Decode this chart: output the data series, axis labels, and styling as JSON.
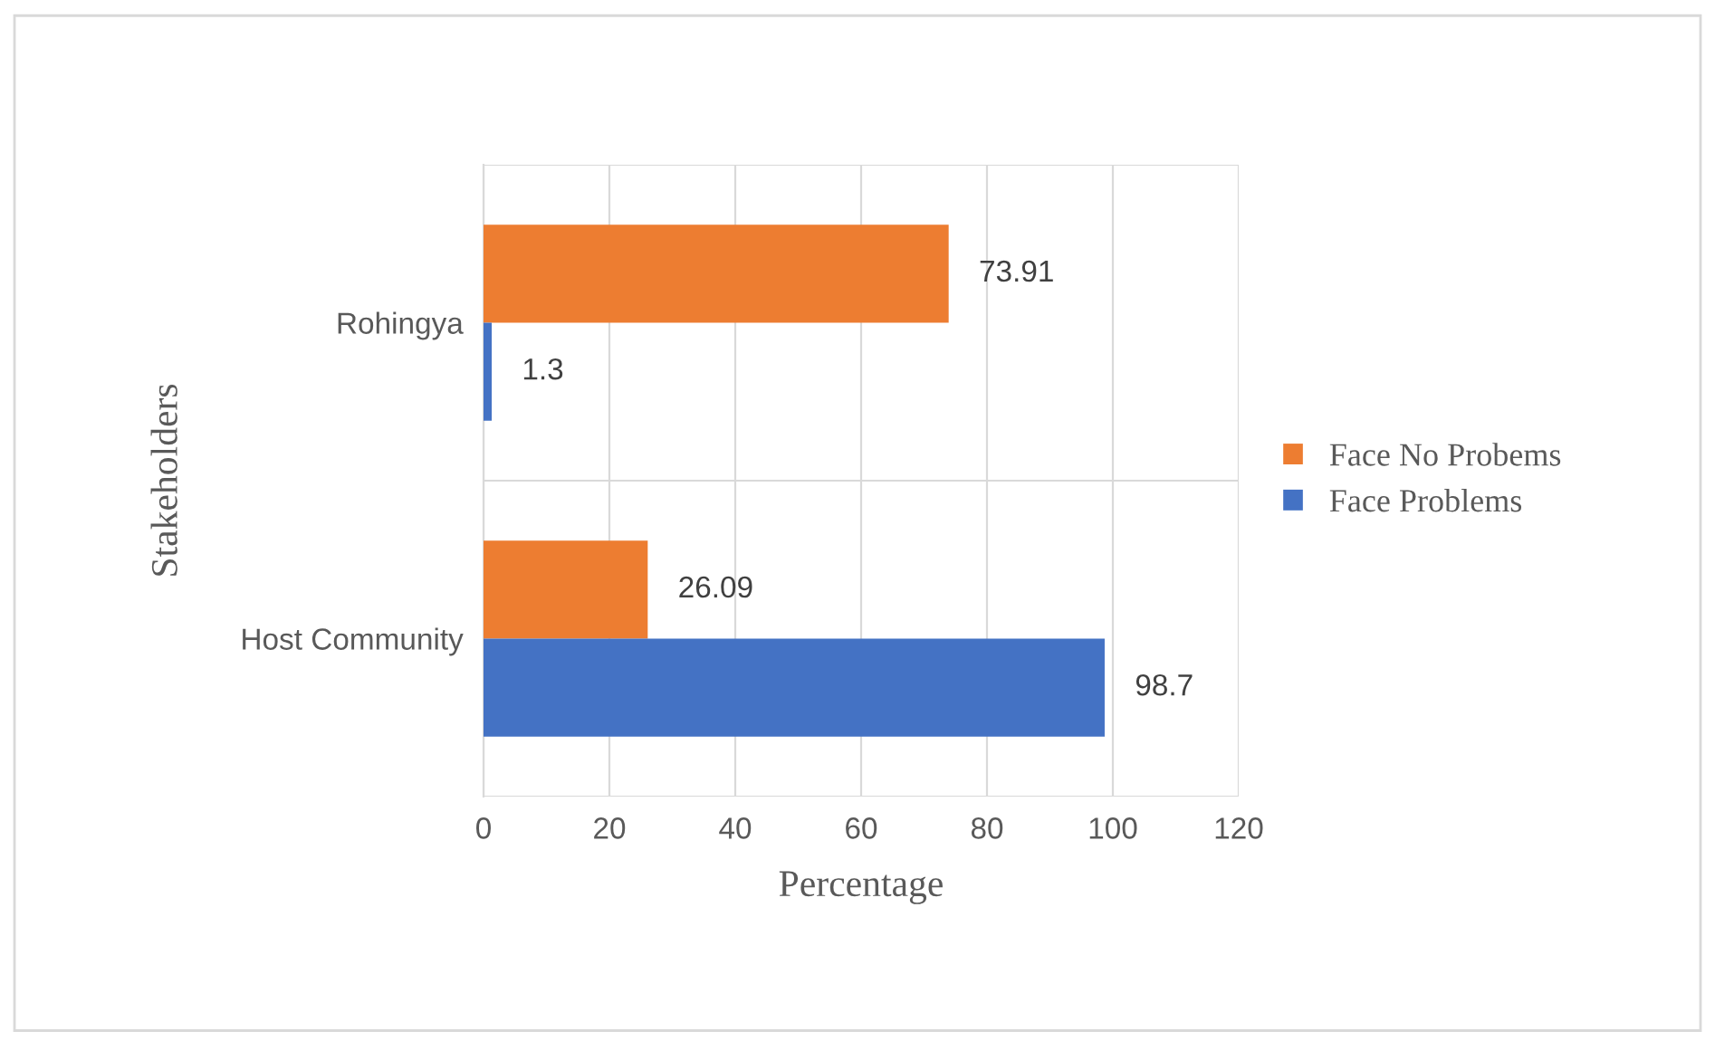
{
  "chart_data": {
    "type": "bar",
    "orientation": "horizontal",
    "xlabel": "Percentage",
    "ylabel": "Stakeholders",
    "categories": [
      "Rohingya",
      "Host Community"
    ],
    "series": [
      {
        "name": "Face No Probems",
        "color": "#ed7d31",
        "values": [
          73.91,
          26.09
        ]
      },
      {
        "name": "Face Problems",
        "color": "#4472c4",
        "values": [
          1.3,
          98.7
        ]
      }
    ],
    "xlim": [
      0,
      120
    ],
    "xticks": [
      0,
      20,
      40,
      60,
      80,
      100,
      120
    ],
    "grid": true,
    "legend": "right",
    "data_labels": true
  }
}
